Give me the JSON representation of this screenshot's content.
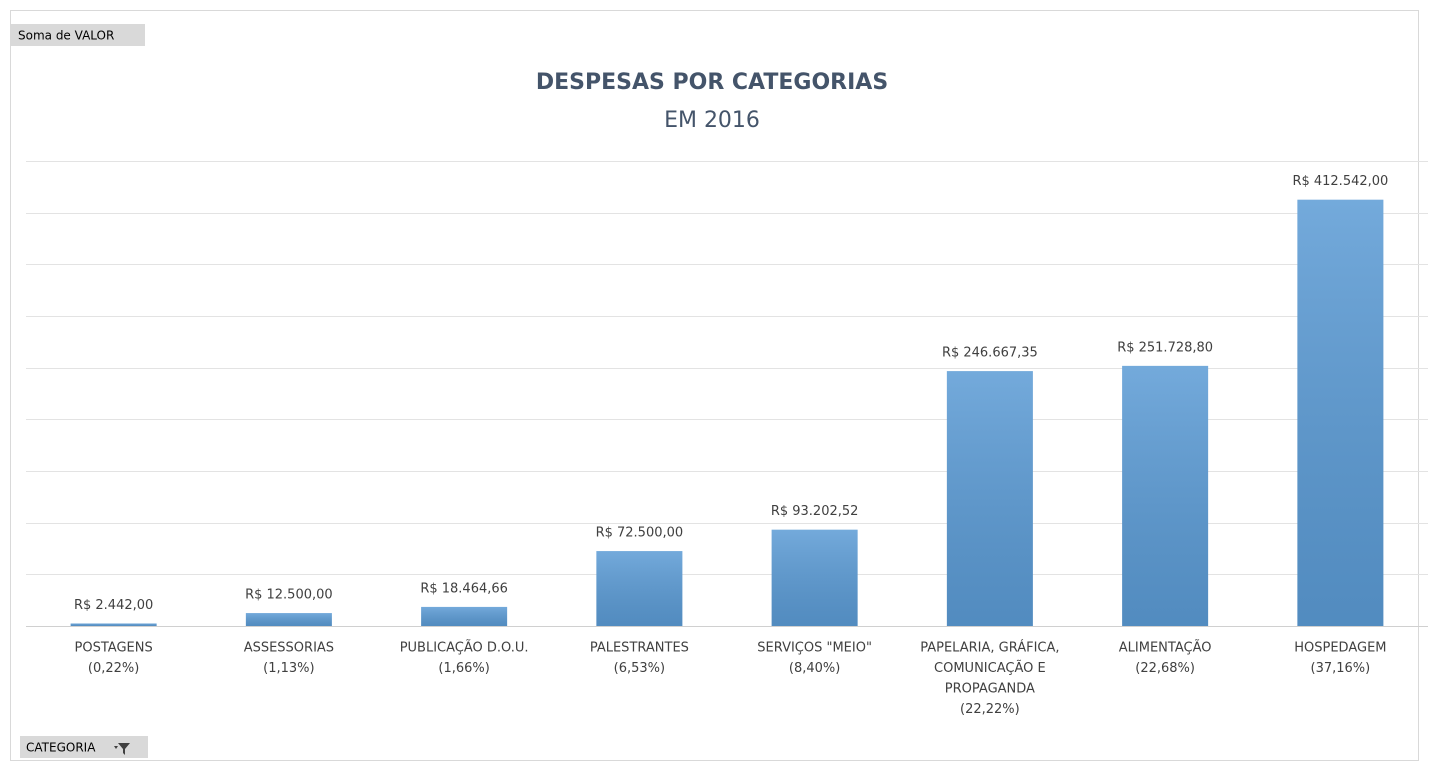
{
  "chart_data": {
    "type": "bar",
    "title": "DESPESAS POR CATEGORIAS",
    "subtitle": "EM 2016",
    "value_field_button": "Soma de VALOR",
    "axis_field_button": "CATEGORIA",
    "categories": [
      [
        "POSTAGENS",
        "(0,22%)"
      ],
      [
        "ASSESSORIAS",
        "(1,13%)"
      ],
      [
        "PUBLICAÇÃO D.O.U.",
        "(1,66%)"
      ],
      [
        "PALESTRANTES",
        "(6,53%)"
      ],
      [
        "SERVIÇOS \"MEIO\"",
        "(8,40%)"
      ],
      [
        "PAPELARIA, GRÁFICA,",
        "COMUNICAÇÃO E",
        "PROPAGANDA",
        "(22,22%)"
      ],
      [
        "ALIMENTAÇÃO",
        "(22,68%)"
      ],
      [
        "HOSPEDAGEM",
        "(37,16%)"
      ]
    ],
    "values": [
      2442,
      12500,
      18464.66,
      72500,
      93202.52,
      246667.35,
      251728.8,
      412542
    ],
    "value_labels": [
      "R$ 2.442,00",
      "R$ 12.500,00",
      "R$ 18.464,66",
      "R$ 72.500,00",
      "R$ 93.202,52",
      "R$ 246.667,35",
      "R$ 251.728,80",
      "R$ 412.542,00"
    ],
    "color": "#5b9bd5",
    "ylim": [
      0,
      450000
    ],
    "yticks": [
      0,
      50000,
      100000,
      150000,
      200000,
      250000,
      300000,
      350000,
      400000,
      450000
    ],
    "grid": true
  }
}
